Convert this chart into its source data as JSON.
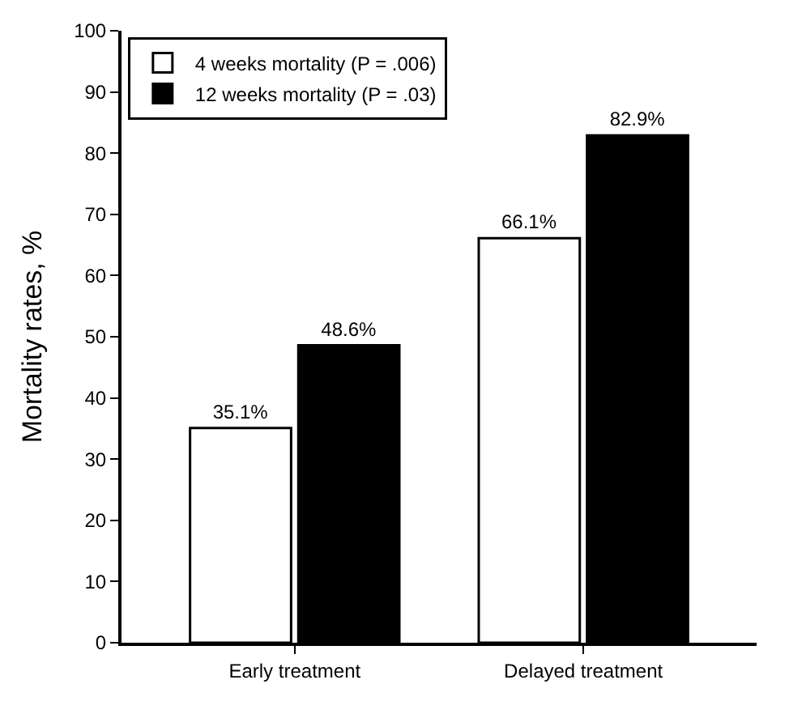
{
  "chart_data": {
    "type": "bar",
    "ylabel": "Mortality rates, %",
    "categories": [
      "Early treatment",
      "Delayed treatment"
    ],
    "series": [
      {
        "name": "4 weeks mortality (P = .006)",
        "color": "#ffffff",
        "values": [
          35.1,
          66.1
        ],
        "value_labels": [
          "35.1%",
          "66.1%"
        ]
      },
      {
        "name": "12 weeks mortality (P = .03)",
        "color": "#000000",
        "values": [
          48.6,
          82.9
        ],
        "value_labels": [
          "48.6%",
          "82.9%"
        ]
      }
    ],
    "ylim": [
      0,
      100
    ],
    "yticks": [
      0,
      10,
      20,
      30,
      40,
      50,
      60,
      70,
      80,
      90,
      100
    ],
    "legend": "top left"
  }
}
